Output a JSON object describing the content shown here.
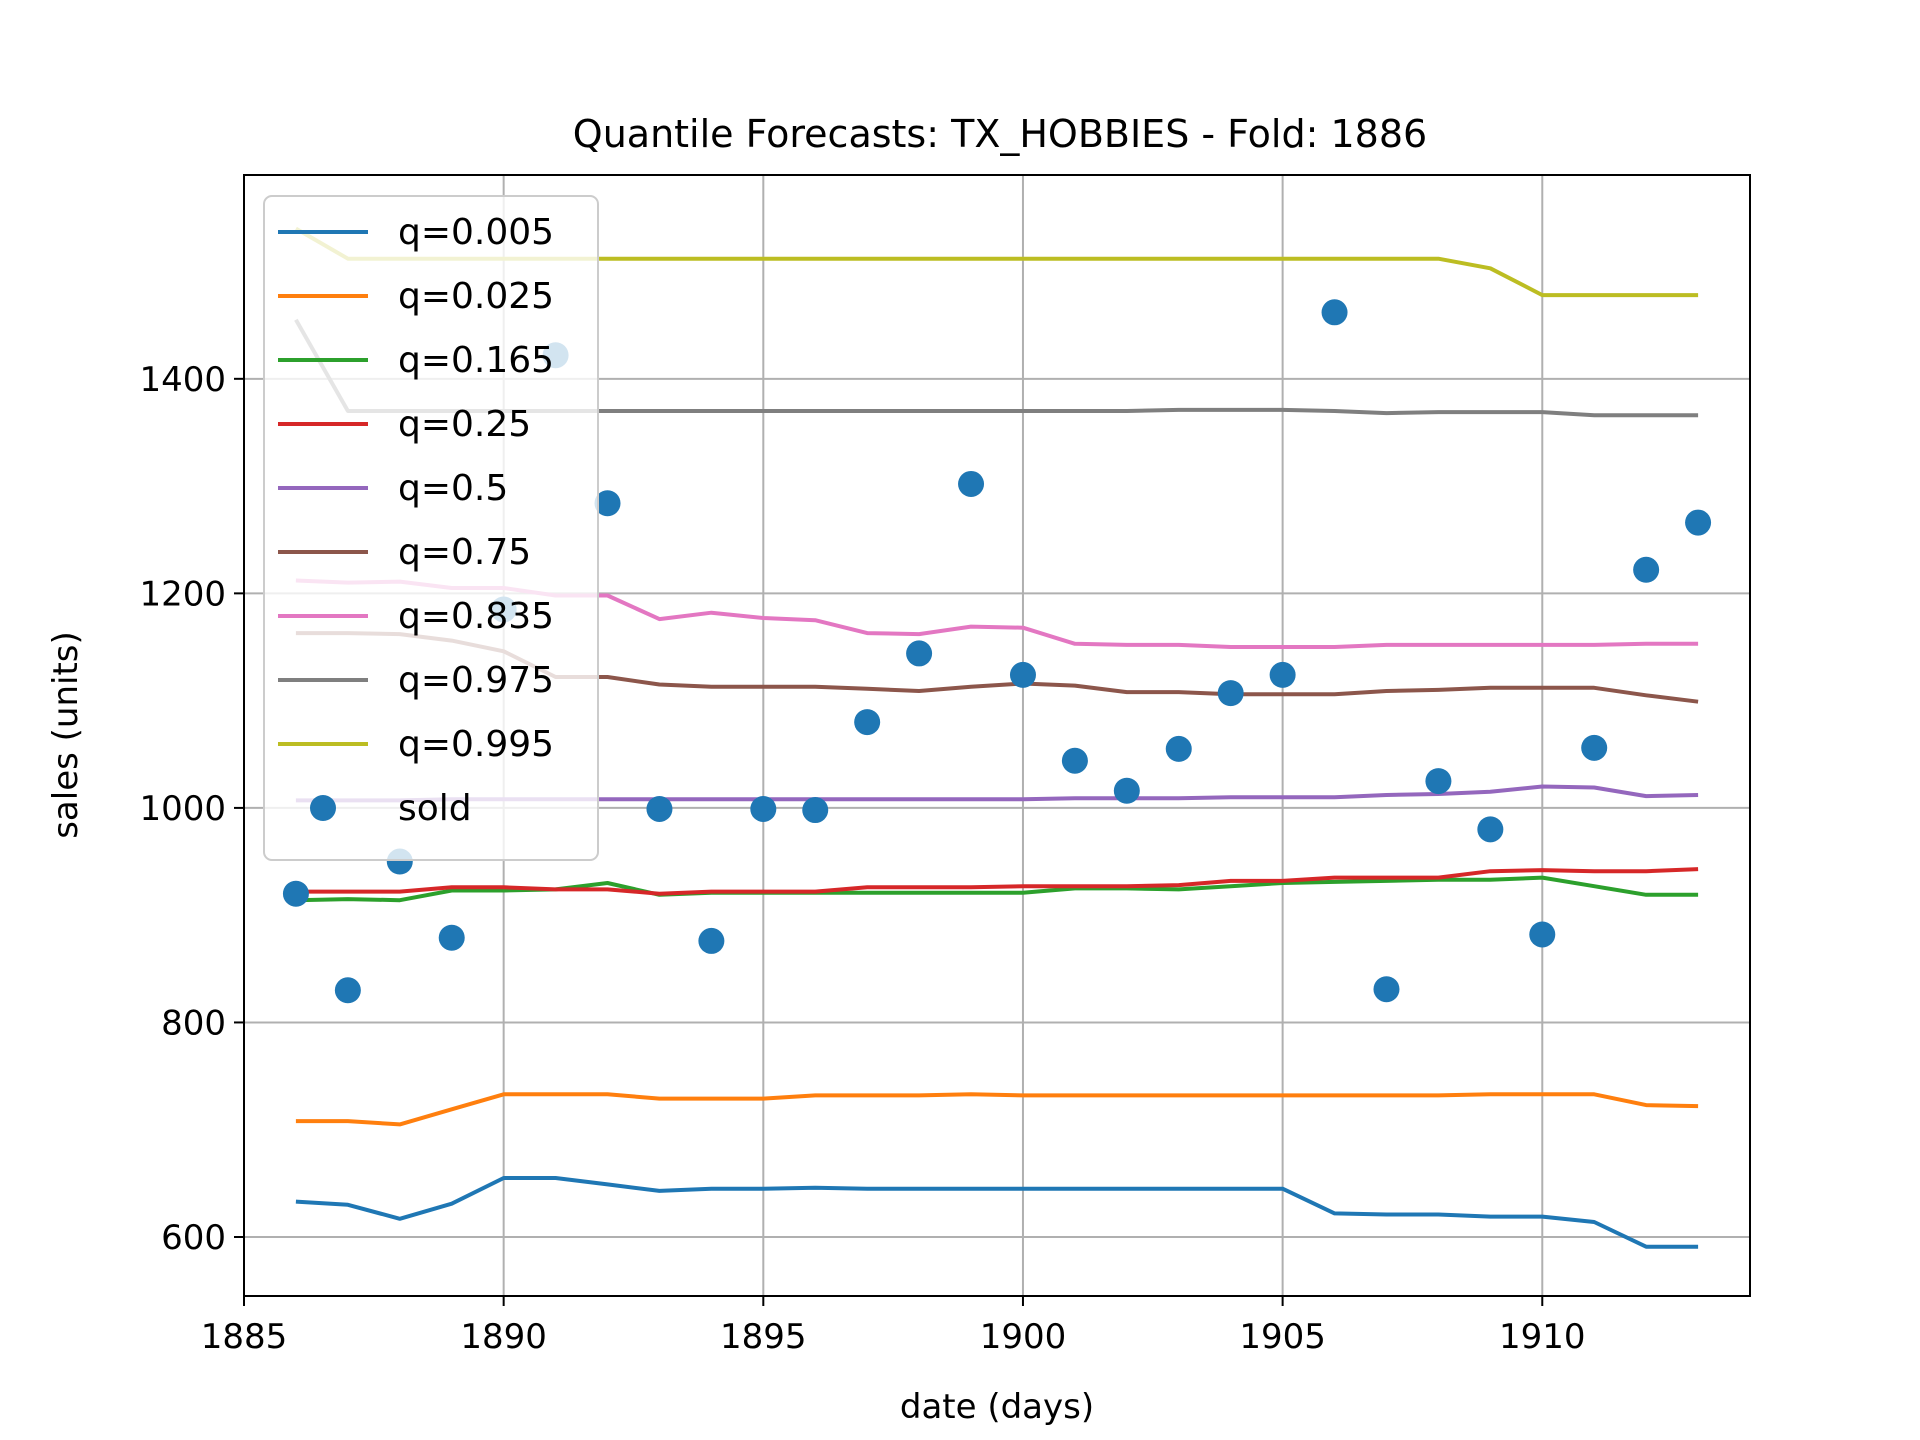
{
  "chart_data": {
    "type": "line",
    "title": "Quantile Forecasts: TX_HOBBIES - Fold: 1886",
    "xlabel": "date (days)",
    "ylabel": "sales (units)",
    "xlim": [
      1885,
      1914
    ],
    "ylim": [
      545,
      1590
    ],
    "xticks": [
      1885,
      1890,
      1895,
      1900,
      1905,
      1910
    ],
    "yticks": [
      600,
      800,
      1000,
      1200,
      1400
    ],
    "grid": true,
    "legend_position": "top-left",
    "x": [
      1886,
      1887,
      1888,
      1889,
      1890,
      1891,
      1892,
      1893,
      1894,
      1895,
      1896,
      1897,
      1898,
      1899,
      1900,
      1901,
      1902,
      1903,
      1904,
      1905,
      1906,
      1907,
      1908,
      1909,
      1910,
      1911,
      1912,
      1913
    ],
    "series": [
      {
        "name": "q=0.005",
        "color": "#1f77b4",
        "values": [
          633,
          630,
          617,
          631,
          655,
          655,
          649,
          643,
          645,
          645,
          646,
          645,
          645,
          645,
          645,
          645,
          645,
          645,
          645,
          645,
          622,
          621,
          621,
          619,
          619,
          614,
          591,
          591
        ]
      },
      {
        "name": "q=0.025",
        "color": "#ff7f0e",
        "values": [
          708,
          708,
          705,
          719,
          733,
          733,
          733,
          729,
          729,
          729,
          732,
          732,
          732,
          733,
          732,
          732,
          732,
          732,
          732,
          732,
          732,
          732,
          732,
          733,
          733,
          733,
          723,
          722
        ]
      },
      {
        "name": "q=0.165",
        "color": "#2ca02c",
        "values": [
          914,
          915,
          914,
          923,
          923,
          924,
          930,
          919,
          921,
          921,
          921,
          921,
          921,
          921,
          921,
          925,
          925,
          924,
          927,
          930,
          931,
          932,
          933,
          933,
          935,
          927,
          919,
          919
        ]
      },
      {
        "name": "q=0.25",
        "color": "#d62728",
        "values": [
          922,
          922,
          922,
          926,
          926,
          924,
          924,
          920,
          922,
          922,
          922,
          926,
          926,
          926,
          927,
          927,
          927,
          928,
          932,
          932,
          935,
          935,
          935,
          941,
          942,
          941,
          941,
          943
        ]
      },
      {
        "name": "q=0.5",
        "color": "#9467bd",
        "values": [
          1007,
          1007,
          1007,
          1008,
          1008,
          1008,
          1008,
          1008,
          1008,
          1008,
          1008,
          1008,
          1008,
          1008,
          1008,
          1009,
          1009,
          1009,
          1010,
          1010,
          1010,
          1012,
          1013,
          1015,
          1020,
          1019,
          1011,
          1012
        ]
      },
      {
        "name": "q=0.75",
        "color": "#8c564b",
        "values": [
          1163,
          1163,
          1162,
          1156,
          1146,
          1122,
          1122,
          1115,
          1113,
          1113,
          1113,
          1111,
          1109,
          1113,
          1116,
          1114,
          1108,
          1108,
          1106,
          1106,
          1106,
          1109,
          1110,
          1112,
          1112,
          1112,
          1105,
          1099
        ]
      },
      {
        "name": "q=0.835",
        "color": "#e377c2",
        "values": [
          1212,
          1210,
          1211,
          1205,
          1205,
          1198,
          1198,
          1176,
          1182,
          1177,
          1175,
          1163,
          1162,
          1169,
          1168,
          1153,
          1152,
          1152,
          1150,
          1150,
          1150,
          1152,
          1152,
          1152,
          1152,
          1152,
          1153,
          1153
        ]
      },
      {
        "name": "q=0.975",
        "color": "#7f7f7f",
        "values": [
          1455,
          1370,
          1370,
          1370,
          1370,
          1370,
          1370,
          1370,
          1370,
          1370,
          1370,
          1370,
          1370,
          1370,
          1370,
          1370,
          1370,
          1371,
          1371,
          1371,
          1370,
          1368,
          1369,
          1369,
          1369,
          1366,
          1366,
          1366
        ]
      },
      {
        "name": "q=0.995",
        "color": "#bcbd22",
        "values": [
          1540,
          1512,
          1512,
          1512,
          1512,
          1512,
          1512,
          1512,
          1512,
          1512,
          1512,
          1512,
          1512,
          1512,
          1512,
          1512,
          1512,
          1512,
          1512,
          1512,
          1512,
          1512,
          1512,
          1503,
          1478,
          1478,
          1478,
          1478
        ]
      }
    ],
    "scatter": {
      "name": "sold",
      "color": "#1f77b4",
      "x": [
        1886,
        1887,
        1888,
        1889,
        1890,
        1891,
        1892,
        1893,
        1894,
        1895,
        1896,
        1897,
        1898,
        1899,
        1900,
        1901,
        1902,
        1903,
        1904,
        1905,
        1906,
        1907,
        1908,
        1909,
        1910,
        1911,
        1912,
        1913
      ],
      "y": [
        920,
        830,
        950,
        879,
        1185,
        1422,
        1284,
        999,
        876,
        999,
        998,
        1080,
        1144,
        1302,
        1124,
        1044,
        1016,
        1055,
        1107,
        1124,
        1462,
        831,
        1025,
        980,
        882,
        1056,
        1222,
        1266
      ]
    }
  }
}
